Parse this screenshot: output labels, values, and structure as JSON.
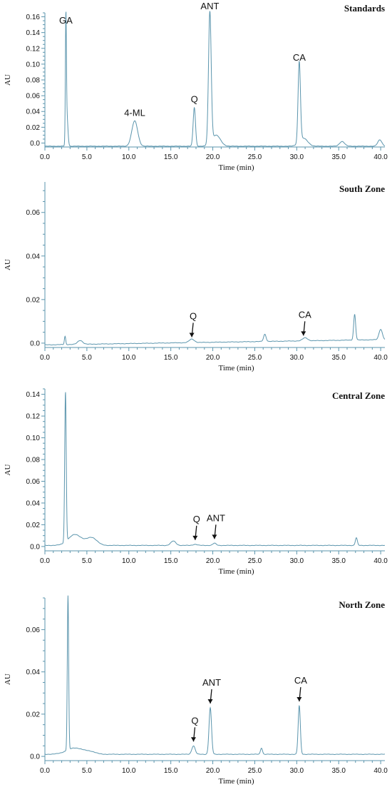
{
  "chart_data": [
    {
      "type": "line",
      "title": "Standards",
      "xlabel": "Time (min)",
      "ylabel": "AU",
      "xlim": [
        0,
        40.5
      ],
      "ylim": [
        -0.005,
        0.165
      ],
      "xticks": [
        "0.0",
        "5.0",
        "10.0",
        "15.0",
        "20.0",
        "25.0",
        "30.0",
        "35.0",
        "40.0"
      ],
      "yticks": [
        "0.0",
        "0.02",
        "0.04",
        "0.06",
        "0.08",
        "0.10",
        "0.12",
        "0.14",
        "0.16"
      ],
      "baseline": -0.004,
      "peaks": [
        {
          "x": 2.5,
          "y": 0.145,
          "w": 0.06
        },
        {
          "x": 2.62,
          "y": 0.035,
          "w": 0.12
        },
        {
          "x": 10.7,
          "y": 0.028,
          "w": 0.35
        },
        {
          "x": 17.8,
          "y": 0.045,
          "w": 0.14
        },
        {
          "x": 19.65,
          "y": 0.163,
          "w": 0.16
        },
        {
          "x": 20.4,
          "y": 0.01,
          "w": 0.5
        },
        {
          "x": 30.3,
          "y": 0.098,
          "w": 0.14
        },
        {
          "x": 30.8,
          "y": 0.006,
          "w": 0.5
        },
        {
          "x": 35.4,
          "y": 0.002,
          "w": 0.3
        },
        {
          "x": 39.9,
          "y": 0.004,
          "w": 0.25
        }
      ],
      "annotations": [
        {
          "text": "GA",
          "x": 2.5,
          "y": 0.145,
          "arrow": false
        },
        {
          "text": "4-ML",
          "x": 10.7,
          "y": 0.028,
          "arrow": false
        },
        {
          "text": "Q",
          "x": 17.8,
          "y": 0.045,
          "arrow": false
        },
        {
          "text": "ANT",
          "x": 19.65,
          "y": 0.163,
          "arrow": false
        },
        {
          "text": "CA",
          "x": 30.3,
          "y": 0.098,
          "arrow": false
        }
      ]
    },
    {
      "type": "line",
      "title": "South Zone",
      "xlabel": "Time (min)",
      "ylabel": "AU",
      "xlim": [
        0,
        40.5
      ],
      "ylim": [
        -0.002,
        0.074
      ],
      "xticks": [
        "0.0",
        "5.0",
        "10.0",
        "15.0",
        "20.0",
        "25.0",
        "30.0",
        "35.0",
        "40.0"
      ],
      "yticks": [
        "0.0",
        "0.02",
        "0.04",
        "0.06"
      ],
      "baseline": -0.0008,
      "peaks": [
        {
          "x": 2.4,
          "y": 0.003,
          "w": 0.08
        },
        {
          "x": 4.2,
          "y": 0.001,
          "w": 0.3
        },
        {
          "x": 17.5,
          "y": 0.0008,
          "w": 0.3
        },
        {
          "x": 26.2,
          "y": 0.0025,
          "w": 0.15
        },
        {
          "x": 31.0,
          "y": 0.0006,
          "w": 0.3
        },
        {
          "x": 36.9,
          "y": 0.011,
          "w": 0.12
        },
        {
          "x": 40.0,
          "y": 0.004,
          "w": 0.2
        }
      ],
      "annotations": [
        {
          "text": "Q",
          "x": 17.5,
          "y": 0.0008,
          "arrow": true
        },
        {
          "text": "CA",
          "x": 30.8,
          "y": 0.0015,
          "arrow": true
        }
      ]
    },
    {
      "type": "line",
      "title": "Central Zone",
      "xlabel": "Time (min)",
      "ylabel": "AU",
      "xlim": [
        0,
        40.5
      ],
      "ylim": [
        -0.004,
        0.145
      ],
      "xticks": [
        "0.0",
        "5.0",
        "10.0",
        "15.0",
        "20.0",
        "25.0",
        "30.0",
        "35.0",
        "40.0"
      ],
      "yticks": [
        "0.0",
        "0.02",
        "0.04",
        "0.06",
        "0.08",
        "0.10",
        "0.12",
        "0.14"
      ],
      "baseline": 0.001,
      "peaks": [
        {
          "x": 2.45,
          "y": 0.139,
          "w": 0.09
        },
        {
          "x": 3.6,
          "y": 0.011,
          "w": 0.8
        },
        {
          "x": 5.6,
          "y": 0.008,
          "w": 0.6
        },
        {
          "x": 15.3,
          "y": 0.005,
          "w": 0.3
        },
        {
          "x": 17.9,
          "y": 0.002,
          "w": 0.25
        },
        {
          "x": 20.2,
          "y": 0.003,
          "w": 0.2
        },
        {
          "x": 37.1,
          "y": 0.008,
          "w": 0.12
        }
      ],
      "annotations": [
        {
          "text": "Q",
          "x": 17.9,
          "y": 0.002,
          "arrow": true
        },
        {
          "text": "ANT",
          "x": 20.2,
          "y": 0.003,
          "arrow": true
        }
      ]
    },
    {
      "type": "line",
      "title": "North Zone",
      "xlabel": "Time (min)",
      "ylabel": "AU",
      "xlim": [
        0,
        40.5
      ],
      "ylim": [
        -0.002,
        0.075
      ],
      "xticks": [
        "0.0",
        "5.0",
        "10.0",
        "15.0",
        "20.0",
        "25.0",
        "30.0",
        "35.0",
        "40.0"
      ],
      "yticks": [
        "0.0",
        "0.02",
        "0.04",
        "0.06"
      ],
      "baseline": 0.001,
      "peaks": [
        {
          "x": 2.75,
          "y": 0.074,
          "w": 0.08
        },
        {
          "x": 3.6,
          "y": 0.004,
          "w": 1.0
        },
        {
          "x": 5.5,
          "y": 0.002,
          "w": 0.6
        },
        {
          "x": 10.8,
          "y": 0.001,
          "w": 0.3
        },
        {
          "x": 14.8,
          "y": 0.001,
          "w": 0.3
        },
        {
          "x": 17.7,
          "y": 0.005,
          "w": 0.2
        },
        {
          "x": 19.7,
          "y": 0.023,
          "w": 0.15
        },
        {
          "x": 25.8,
          "y": 0.004,
          "w": 0.12
        },
        {
          "x": 30.3,
          "y": 0.024,
          "w": 0.13
        },
        {
          "x": 38.5,
          "y": 0.001,
          "w": 0.3
        }
      ],
      "annotations": [
        {
          "text": "Q",
          "x": 17.7,
          "y": 0.005,
          "arrow": true
        },
        {
          "text": "ANT",
          "x": 19.7,
          "y": 0.023,
          "arrow": true
        },
        {
          "text": "CA",
          "x": 30.3,
          "y": 0.024,
          "arrow": true
        }
      ]
    }
  ],
  "colors": {
    "trace": "#5b95ad",
    "axis": "#5b95ad",
    "text": "#111111"
  }
}
